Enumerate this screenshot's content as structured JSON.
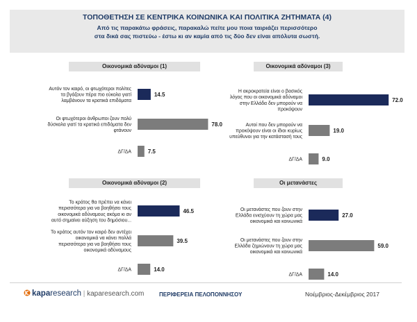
{
  "header": {
    "title": "ΤΟΠΟΘΕΤΗΣΗ ΣΕ ΚΕΝΤΡΙΚΑ ΚΟΙΝΩΝΙΚΑ ΚΑΙ ΠΟΛΙΤΙΚΑ ΖΗΤΗΜΑΤΑ (4)",
    "subtitle_line1": "Από τις παρακάτω φράσεις, παρακαλώ πείτε μου ποια ταιριάζει περισσότερο",
    "subtitle_line2": "στα δικά σας πιστεύω - έστω κι αν καμία από τις δύο δεν είναι απόλυτα σωστή."
  },
  "colors": {
    "navy": "#1b2a5a",
    "gray": "#7c7c7c",
    "title_blue": "#1f3b66",
    "panel_band": "#e1e1e1",
    "header_band": "#e9e9e9"
  },
  "footer": {
    "logo_kapa": "kapa",
    "logo_research": "research",
    "logo_separator": " | ",
    "logo_site": "kaparesearch.com",
    "center": "ΠΕΡΙΦΕΡΕΙΑ ΠΕΛΟΠΟΝΝΗΣΟΥ",
    "right": "Νοέμβριος-Δεκέμβριος 2017",
    "logo_icon": "kapa-logo-icon"
  },
  "chart_data": [
    {
      "type": "bar",
      "title": "Οικονομικά αδύναμοι (1)",
      "categories": [
        [
          "Αυτόν τον καιρό, οι φτωχότεροι πολίτες",
          "τα βγάζουν πέρα πιο εύκολα γιατί",
          "λαμβάνουν τα κρατικά επιδόματα"
        ],
        [
          "Οι φτωχότεροι άνθρωποι ζουν πολύ",
          "δύσκολα γιατί τα κρατικά επιδόματα δεν",
          "φτάνουν"
        ],
        [
          "ΔΓ/ΔΑ"
        ]
      ],
      "values": [
        14.5,
        78.0,
        7.5
      ],
      "value_labels": [
        "14.5",
        "78.0",
        "7.5"
      ],
      "bar_colors": [
        "navy",
        "gray",
        "gray"
      ],
      "xlim": [
        0,
        100
      ]
    },
    {
      "type": "bar",
      "title": "Οικονομικά αδύναμοι (3)",
      "categories": [
        [
          "Η ακροκρατεία είναι ο βασικός",
          "λόγος που οι οικονομικά αδύναμοι",
          "στην Ελλάδα δεν μπορούν να",
          "προκόψουν"
        ],
        [
          "Αυτοί που δεν μπορούν να",
          "προκόψουν είναι οι ίδιοι κυρίως",
          "υπεύθυνοι για την κατάστασή τους"
        ],
        [
          "ΔΓ/ΔΑ"
        ]
      ],
      "values": [
        72.0,
        19.0,
        9.0
      ],
      "value_labels": [
        "72.0",
        "19.0",
        "9.0"
      ],
      "bar_colors": [
        "navy",
        "gray",
        "gray"
      ],
      "xlim": [
        0,
        100
      ]
    },
    {
      "type": "bar",
      "title": "Οικονομικά αδύναμοι (2)",
      "categories": [
        [
          "Το κράτος θα πρέπει να κάνει",
          "περισσότερα για να βοηθήσει τους",
          "οικονομικά αδύναμους ακόμα κι αν",
          "αυτό σημαίνει αύξηση του δημόσιου..."
        ],
        [
          "Το κράτος αυτόν τον καιρό δεν αντέχει",
          "οικονομικά να κάνει πολλά",
          "περισσότερα για να βοηθήσει τους",
          "οικονομικά αδύναμους"
        ],
        [
          "ΔΓ/ΔΑ"
        ]
      ],
      "values": [
        46.5,
        39.5,
        14.0
      ],
      "value_labels": [
        "46.5",
        "39.5",
        "14.0"
      ],
      "bar_colors": [
        "navy",
        "gray",
        "gray"
      ],
      "xlim": [
        0,
        100
      ]
    },
    {
      "type": "bar",
      "title": "Οι μετανάστες",
      "categories": [
        [
          "Οι μετανάστες που ζουν στην",
          "Ελλάδα ενισχύουν τη χώρα μας",
          "οικονομικά και κοινωνικά"
        ],
        [
          "Οι μετανάστες που ζουν στην",
          "Ελλάδα ζημιώνουν τη χώρα μας",
          "οικονομικά και κοινωνικά"
        ],
        [
          "ΔΓ/ΔΑ"
        ]
      ],
      "values": [
        27.0,
        59.0,
        14.0
      ],
      "value_labels": [
        "27.0",
        "59.0",
        "14.0"
      ],
      "bar_colors": [
        "navy",
        "gray",
        "gray"
      ],
      "xlim": [
        0,
        100
      ]
    }
  ]
}
